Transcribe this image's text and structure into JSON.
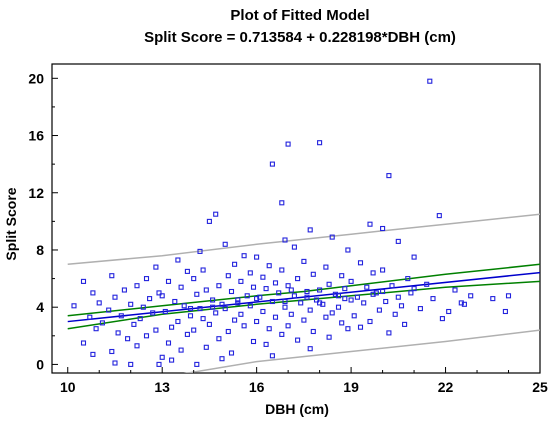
{
  "chart_data": {
    "type": "scatter",
    "title": "Plot of Fitted Model",
    "subtitle": "Split Score = 0.713584 + 0.228198*DBH (cm)",
    "xlabel": "DBH (cm)",
    "ylabel": "Split Score",
    "xlim": [
      9.5,
      25
    ],
    "ylim": [
      -0.6,
      21
    ],
    "xticks": [
      10,
      13,
      16,
      19,
      22,
      25
    ],
    "yticks": [
      0,
      4,
      8,
      12,
      16,
      20
    ],
    "grid": false,
    "legend": "none",
    "colors": {
      "points": "#2222dd",
      "fit": "#0000cc",
      "confidence": "#008000",
      "prediction": "#b0b0b0"
    },
    "fit": {
      "intercept": 0.713584,
      "slope": 0.228198
    },
    "confidence_limits": {
      "x": [
        10,
        13,
        16,
        17.5,
        19,
        22,
        25
      ],
      "lower": [
        2.5,
        3.5,
        4.2,
        4.5,
        4.8,
        5.4,
        5.8
      ],
      "upper": [
        3.4,
        4.1,
        4.8,
        5.1,
        5.5,
        6.3,
        7.0
      ]
    },
    "prediction_limits": {
      "x": [
        10,
        13,
        16,
        19,
        22,
        25
      ],
      "lower": [
        -1.6,
        -0.9,
        0.2,
        0.9,
        1.6,
        2.4
      ],
      "upper": [
        7.0,
        7.6,
        8.4,
        9.1,
        9.8,
        10.5
      ]
    },
    "points": [
      [
        21.5,
        19.8
      ],
      [
        18.0,
        15.5
      ],
      [
        17.0,
        15.4
      ],
      [
        16.5,
        14.0
      ],
      [
        20.2,
        13.2
      ],
      [
        16.8,
        11.3
      ],
      [
        14.7,
        10.5
      ],
      [
        21.8,
        10.4
      ],
      [
        14.5,
        10.0
      ],
      [
        19.6,
        9.8
      ],
      [
        20.0,
        9.5
      ],
      [
        17.7,
        9.4
      ],
      [
        18.4,
        8.9
      ],
      [
        16.9,
        8.7
      ],
      [
        20.5,
        8.6
      ],
      [
        15.0,
        8.4
      ],
      [
        17.2,
        8.2
      ],
      [
        18.9,
        8.0
      ],
      [
        14.2,
        7.9
      ],
      [
        15.6,
        7.6
      ],
      [
        16.0,
        7.5
      ],
      [
        21.0,
        7.5
      ],
      [
        13.5,
        7.3
      ],
      [
        17.5,
        7.2
      ],
      [
        19.3,
        7.1
      ],
      [
        15.3,
        7.0
      ],
      [
        16.4,
        6.9
      ],
      [
        12.8,
        6.8
      ],
      [
        18.2,
        6.8
      ],
      [
        20.0,
        6.6
      ],
      [
        14.3,
        6.6
      ],
      [
        16.8,
        6.6
      ],
      [
        13.8,
        6.5
      ],
      [
        19.7,
        6.4
      ],
      [
        15.8,
        6.4
      ],
      [
        17.8,
        6.3
      ],
      [
        11.4,
        6.2
      ],
      [
        15.1,
        6.2
      ],
      [
        18.7,
        6.2
      ],
      [
        16.2,
        6.1
      ],
      [
        12.5,
        6.0
      ],
      [
        14.0,
        6.0
      ],
      [
        20.8,
        6.0
      ],
      [
        17.3,
        6.0
      ],
      [
        10.5,
        5.8
      ],
      [
        15.5,
        5.8
      ],
      [
        19.0,
        5.8
      ],
      [
        13.2,
        5.8
      ],
      [
        16.6,
        5.7
      ],
      [
        21.4,
        5.6
      ],
      [
        18.3,
        5.6
      ],
      [
        14.8,
        5.5
      ],
      [
        12.2,
        5.5
      ],
      [
        17.0,
        5.5
      ],
      [
        20.3,
        5.5
      ],
      [
        15.9,
        5.4
      ],
      [
        13.6,
        5.4
      ],
      [
        19.5,
        5.4
      ],
      [
        16.3,
        5.3
      ],
      [
        11.8,
        5.2
      ],
      [
        18.0,
        5.2
      ],
      [
        14.4,
        5.2
      ],
      [
        22.3,
        5.2
      ],
      [
        17.6,
        5.1
      ],
      [
        15.2,
        5.1
      ],
      [
        12.9,
        5.0
      ],
      [
        19.8,
        5.0
      ],
      [
        16.7,
        5.0
      ],
      [
        10.8,
        5.0
      ],
      [
        20.9,
        5.0
      ],
      [
        18.5,
        4.9
      ],
      [
        14.1,
        4.9
      ],
      [
        13.0,
        4.8
      ],
      [
        15.7,
        4.8
      ],
      [
        17.2,
        4.8
      ],
      [
        11.5,
        4.7
      ],
      [
        19.2,
        4.7
      ],
      [
        16.1,
        4.7
      ],
      [
        21.6,
        4.6
      ],
      [
        12.6,
        4.6
      ],
      [
        18.8,
        4.6
      ],
      [
        14.6,
        4.5
      ],
      [
        17.9,
        4.5
      ],
      [
        15.4,
        4.5
      ],
      [
        20.1,
        4.4
      ],
      [
        13.4,
        4.4
      ],
      [
        16.5,
        4.4
      ],
      [
        11.0,
        4.3
      ],
      [
        19.4,
        4.3
      ],
      [
        17.4,
        4.3
      ],
      [
        12.0,
        4.2
      ],
      [
        14.9,
        4.2
      ],
      [
        18.1,
        4.2
      ],
      [
        22.6,
        4.2
      ],
      [
        15.8,
        4.1
      ],
      [
        10.2,
        4.1
      ],
      [
        13.7,
        4.1
      ],
      [
        20.6,
        4.1
      ],
      [
        16.9,
        4.0
      ],
      [
        12.4,
        4.0
      ],
      [
        18.6,
        4.0
      ],
      [
        14.2,
        3.9
      ],
      [
        21.2,
        3.9
      ],
      [
        15.0,
        3.9
      ],
      [
        17.7,
        3.8
      ],
      [
        11.3,
        3.8
      ],
      [
        19.9,
        3.8
      ],
      [
        13.1,
        3.7
      ],
      [
        16.2,
        3.7
      ],
      [
        22.1,
        3.7
      ],
      [
        18.4,
        3.6
      ],
      [
        14.7,
        3.6
      ],
      [
        12.7,
        3.6
      ],
      [
        17.1,
        3.5
      ],
      [
        20.4,
        3.5
      ],
      [
        15.5,
        3.5
      ],
      [
        11.7,
        3.4
      ],
      [
        19.1,
        3.4
      ],
      [
        13.9,
        3.4
      ],
      [
        16.6,
        3.3
      ],
      [
        10.7,
        3.3
      ],
      [
        18.2,
        3.3
      ],
      [
        14.3,
        3.2
      ],
      [
        21.9,
        3.2
      ],
      [
        12.3,
        3.2
      ],
      [
        17.5,
        3.1
      ],
      [
        15.3,
        3.1
      ],
      [
        19.6,
        3.0
      ],
      [
        13.5,
        3.0
      ],
      [
        16.0,
        3.0
      ],
      [
        11.1,
        2.9
      ],
      [
        18.7,
        2.9
      ],
      [
        14.5,
        2.8
      ],
      [
        20.7,
        2.8
      ],
      [
        12.1,
        2.8
      ],
      [
        17.0,
        2.7
      ],
      [
        15.6,
        2.7
      ],
      [
        13.3,
        2.6
      ],
      [
        19.3,
        2.6
      ],
      [
        16.4,
        2.5
      ],
      [
        10.9,
        2.5
      ],
      [
        18.9,
        2.5
      ],
      [
        14.0,
        2.4
      ],
      [
        12.8,
        2.4
      ],
      [
        17.8,
        2.3
      ],
      [
        15.1,
        2.3
      ],
      [
        11.6,
        2.2
      ],
      [
        20.2,
        2.2
      ],
      [
        13.8,
        2.1
      ],
      [
        16.8,
        2.1
      ],
      [
        12.5,
        2.0
      ],
      [
        18.3,
        1.9
      ],
      [
        14.8,
        1.8
      ],
      [
        11.9,
        1.8
      ],
      [
        17.3,
        1.7
      ],
      [
        15.9,
        1.6
      ],
      [
        13.2,
        1.5
      ],
      [
        10.5,
        1.5
      ],
      [
        16.3,
        1.4
      ],
      [
        12.2,
        1.3
      ],
      [
        14.4,
        1.2
      ],
      [
        17.7,
        1.1
      ],
      [
        13.6,
        1.0
      ],
      [
        11.4,
        0.9
      ],
      [
        15.2,
        0.8
      ],
      [
        10.8,
        0.7
      ],
      [
        16.5,
        0.6
      ],
      [
        13.0,
        0.5
      ],
      [
        14.9,
        0.4
      ],
      [
        13.3,
        0.3
      ],
      [
        11.5,
        0.1
      ],
      [
        12.0,
        0.0
      ],
      [
        12.9,
        0.0
      ],
      [
        14.1,
        0.0
      ],
      [
        16.0,
        4.6
      ],
      [
        16.9,
        4.4
      ],
      [
        17.6,
        4.7
      ],
      [
        18.0,
        4.3
      ],
      [
        18.6,
        4.8
      ],
      [
        19.0,
        4.5
      ],
      [
        19.7,
        4.9
      ],
      [
        20.5,
        4.7
      ],
      [
        15.4,
        4.3
      ],
      [
        14.6,
        4.0
      ],
      [
        13.9,
        3.9
      ],
      [
        17.1,
        5.2
      ],
      [
        18.8,
        5.3
      ],
      [
        20.0,
        5.1
      ],
      [
        21.0,
        5.3
      ],
      [
        22.8,
        4.8
      ],
      [
        23.5,
        4.6
      ],
      [
        24.0,
        4.8
      ],
      [
        23.9,
        3.7
      ],
      [
        22.5,
        4.3
      ]
    ]
  }
}
